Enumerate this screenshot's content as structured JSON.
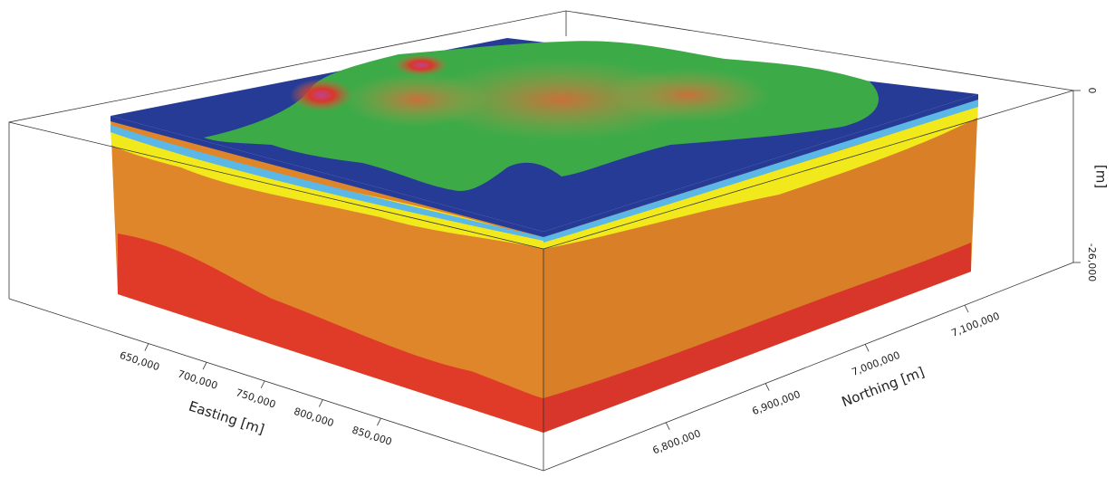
{
  "chart_data": {
    "type": "block3d",
    "x_label": "Easting [m]",
    "y_label": "Northing [m]",
    "z_label": "[m]",
    "xlim": [
      530000,
      990000
    ],
    "xticks": [
      {
        "value": 650000,
        "label": "650,000"
      },
      {
        "value": 700000,
        "label": "700,000"
      },
      {
        "value": 750000,
        "label": "750,000"
      },
      {
        "value": 800000,
        "label": "800,000"
      },
      {
        "value": 850000,
        "label": "850,000"
      }
    ],
    "ylim": [
      6677000,
      7209000
    ],
    "yticks": [
      {
        "value": 6800000,
        "label": "6,800,000"
      },
      {
        "value": 6900000,
        "label": "6,900,000"
      },
      {
        "value": 7000000,
        "label": "7,000,000"
      },
      {
        "value": 7100000,
        "label": "7,100,000"
      }
    ],
    "zlim": [
      -26000,
      0
    ],
    "zticks": [
      {
        "value": -26000,
        "label": "-26,000"
      },
      0
    ]
  }
}
